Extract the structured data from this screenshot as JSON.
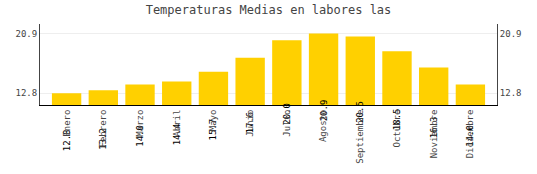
{
  "chart_data": {
    "type": "bar",
    "title": "Temperaturas Medias en labores las",
    "categories": [
      "Enero",
      "Febrero",
      "Marzo",
      "Abril",
      "Mayo",
      "Junio",
      "Julio",
      "Agosto",
      "Septiembre",
      "Octubre",
      "Noviembre",
      "Diciembre"
    ],
    "values": [
      12.8,
      13.2,
      14.0,
      14.4,
      15.7,
      17.6,
      20.0,
      20.9,
      20.5,
      18.5,
      16.3,
      14.0
    ],
    "value_labels": [
      "12.8",
      "13.2",
      "14.0",
      "14.4",
      "15.7",
      "17.6",
      "20.0",
      "20.9",
      "20.5",
      "18.5",
      "16.3",
      "14.0"
    ],
    "color": "#FFD000",
    "data_labels": true,
    "ylim": [
      11.2,
      22.2
    ],
    "yticks": [
      12.8,
      20.9
    ],
    "y2lim": [
      11.2,
      22.2
    ],
    "y2ticks": [
      12.8,
      20.9
    ],
    "grid": true
  }
}
